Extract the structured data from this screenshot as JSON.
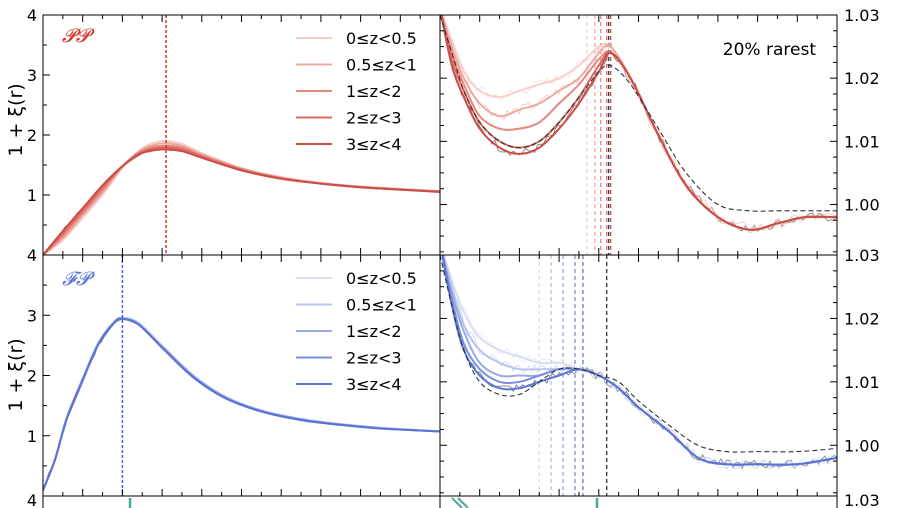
{
  "figure": {
    "ylabel": "1 + ξ(r)",
    "annotation": "20% rarest"
  },
  "colors": {
    "red": [
      "#f5cfca",
      "#eeaaa2",
      "#e5887f",
      "#dd6a61",
      "#cc4d46"
    ],
    "blue": [
      "#d8ddf2",
      "#b9c4ec",
      "#99a9e6",
      "#7a8edf",
      "#5a74d6"
    ],
    "red_vline": "#d8322c",
    "blue_vline": "#3f62d8",
    "noisy": "#6e6e6e",
    "dashed": "#333333",
    "teal": "#46a8a0"
  },
  "chart_data": [
    {
      "type": "line",
      "panel": "top-left",
      "label": "𝓟𝓟",
      "ylim": [
        0.0,
        4.0
      ],
      "yticks": [
        1,
        2,
        3,
        4
      ],
      "yticks_outer": [
        1,
        2,
        3
      ],
      "vline_x": 0.31,
      "legend": [
        "0≤z<0.5",
        "0.5≤z<1",
        "1≤z<2",
        "2≤z<3",
        "3≤z<4"
      ],
      "legend_position": "top-right",
      "x": [
        0.0,
        0.05,
        0.1,
        0.15,
        0.2,
        0.25,
        0.3,
        0.35,
        0.4,
        0.5,
        0.6,
        0.7,
        0.8,
        0.9,
        1.0
      ],
      "series": [
        {
          "values": [
            0.0,
            0.25,
            0.62,
            1.0,
            1.45,
            1.78,
            1.9,
            1.85,
            1.7,
            1.45,
            1.3,
            1.2,
            1.14,
            1.1,
            1.06
          ]
        },
        {
          "values": [
            0.0,
            0.28,
            0.66,
            1.04,
            1.47,
            1.76,
            1.86,
            1.82,
            1.68,
            1.44,
            1.29,
            1.2,
            1.14,
            1.1,
            1.06
          ]
        },
        {
          "values": [
            0.0,
            0.32,
            0.7,
            1.08,
            1.48,
            1.74,
            1.82,
            1.79,
            1.66,
            1.43,
            1.28,
            1.19,
            1.13,
            1.09,
            1.06
          ]
        },
        {
          "values": [
            0.0,
            0.36,
            0.74,
            1.12,
            1.48,
            1.72,
            1.79,
            1.76,
            1.64,
            1.42,
            1.28,
            1.19,
            1.13,
            1.09,
            1.06
          ]
        },
        {
          "values": [
            0.0,
            0.4,
            0.78,
            1.16,
            1.48,
            1.7,
            1.76,
            1.73,
            1.62,
            1.41,
            1.27,
            1.19,
            1.13,
            1.09,
            1.05
          ]
        }
      ]
    },
    {
      "type": "line",
      "panel": "top-right",
      "ylim": [
        0.992,
        1.03
      ],
      "yticks": [
        1.0,
        1.01,
        1.02,
        1.03
      ],
      "vlines": [
        0.37,
        0.39,
        0.405,
        0.42,
        0.43
      ],
      "vline_black": 0.425,
      "x": [
        0.0,
        0.03,
        0.06,
        0.1,
        0.15,
        0.2,
        0.25,
        0.3,
        0.35,
        0.4,
        0.43,
        0.48,
        0.55,
        0.62,
        0.7,
        0.78,
        0.85,
        0.92,
        1.0
      ],
      "series": [
        {
          "values": [
            1.031,
            1.026,
            1.021,
            1.018,
            1.017,
            1.018,
            1.019,
            1.02,
            1.022,
            1.025,
            1.025,
            1.02,
            1.011,
            1.003,
            0.998,
            0.996,
            0.997,
            0.998,
            0.998
          ]
        },
        {
          "values": [
            1.031,
            1.025,
            1.02,
            1.016,
            1.014,
            1.015,
            1.016,
            1.018,
            1.02,
            1.024,
            1.025,
            1.02,
            1.011,
            1.003,
            0.998,
            0.996,
            0.997,
            0.998,
            0.998
          ]
        },
        {
          "values": [
            1.031,
            1.024,
            1.019,
            1.014,
            1.012,
            1.012,
            1.013,
            1.016,
            1.019,
            1.023,
            1.024,
            1.02,
            1.011,
            1.003,
            0.998,
            0.996,
            0.997,
            0.998,
            0.998
          ]
        },
        {
          "values": [
            1.031,
            1.023,
            1.018,
            1.013,
            1.01,
            1.009,
            1.01,
            1.013,
            1.017,
            1.022,
            1.024,
            1.02,
            1.011,
            1.003,
            0.998,
            0.996,
            0.997,
            0.998,
            0.998
          ]
        },
        {
          "values": [
            1.031,
            1.022,
            1.017,
            1.012,
            1.009,
            1.008,
            1.009,
            1.012,
            1.016,
            1.021,
            1.024,
            1.02,
            1.011,
            1.003,
            0.998,
            0.996,
            0.997,
            0.998,
            0.998
          ]
        }
      ],
      "reference": {
        "values": [
          1.03,
          1.024,
          1.018,
          1.013,
          1.01,
          1.009,
          1.01,
          1.013,
          1.017,
          1.021,
          1.022,
          1.019,
          1.012,
          1.005,
          1.0,
          0.999,
          0.999,
          0.999,
          0.999
        ]
      }
    },
    {
      "type": "line",
      "panel": "bottom-left",
      "label": "𝓕𝓟",
      "ylim": [
        0.0,
        4.0
      ],
      "yticks": [
        1,
        2,
        3,
        4
      ],
      "yticks_outer": [
        1,
        2,
        3
      ],
      "vline_x": 0.2,
      "legend": [
        "0≤z<0.5",
        "0.5≤z<1",
        "1≤z<2",
        "2≤z<3",
        "3≤z<4"
      ],
      "legend_position": "top-right",
      "x": [
        0.0,
        0.03,
        0.06,
        0.1,
        0.14,
        0.18,
        0.2,
        0.24,
        0.3,
        0.38,
        0.46,
        0.55,
        0.65,
        0.75,
        0.85,
        1.0
      ],
      "series": [
        {
          "values": [
            0.1,
            0.6,
            1.3,
            1.95,
            2.55,
            2.9,
            2.96,
            2.88,
            2.5,
            2.0,
            1.65,
            1.42,
            1.28,
            1.19,
            1.13,
            1.07
          ]
        },
        {
          "values": [
            0.1,
            0.6,
            1.3,
            1.95,
            2.55,
            2.9,
            2.95,
            2.87,
            2.49,
            1.99,
            1.64,
            1.42,
            1.28,
            1.19,
            1.13,
            1.07
          ]
        },
        {
          "values": [
            0.1,
            0.6,
            1.3,
            1.94,
            2.54,
            2.89,
            2.95,
            2.86,
            2.48,
            1.98,
            1.64,
            1.41,
            1.27,
            1.19,
            1.13,
            1.07
          ]
        },
        {
          "values": [
            0.1,
            0.6,
            1.29,
            1.93,
            2.53,
            2.88,
            2.94,
            2.85,
            2.47,
            1.97,
            1.63,
            1.41,
            1.27,
            1.18,
            1.12,
            1.07
          ]
        },
        {
          "values": [
            0.1,
            0.6,
            1.28,
            1.92,
            2.52,
            2.88,
            2.94,
            2.85,
            2.46,
            1.96,
            1.62,
            1.4,
            1.26,
            1.18,
            1.12,
            1.07
          ]
        }
      ]
    },
    {
      "type": "line",
      "panel": "bottom-right",
      "ylim": [
        0.992,
        1.03
      ],
      "yticks": [
        1.0,
        1.01,
        1.02,
        1.03
      ],
      "vlines": [
        0.25,
        0.28,
        0.31,
        0.34,
        0.36
      ],
      "vline_black": 0.42,
      "x": [
        0.0,
        0.03,
        0.06,
        0.1,
        0.15,
        0.2,
        0.25,
        0.3,
        0.35,
        0.4,
        0.45,
        0.5,
        0.58,
        0.65,
        0.72,
        0.8,
        0.9,
        1.0
      ],
      "series": [
        {
          "values": [
            1.032,
            1.026,
            1.021,
            1.017,
            1.015,
            1.014,
            1.013,
            1.013,
            1.012,
            1.011,
            1.009,
            1.006,
            1.002,
            0.998,
            0.997,
            0.997,
            0.997,
            0.998
          ]
        },
        {
          "values": [
            1.032,
            1.025,
            1.019,
            1.015,
            1.013,
            1.012,
            1.012,
            1.012,
            1.012,
            1.011,
            1.009,
            1.006,
            1.002,
            0.998,
            0.997,
            0.997,
            0.997,
            0.998
          ]
        },
        {
          "values": [
            1.032,
            1.024,
            1.018,
            1.013,
            1.011,
            1.011,
            1.011,
            1.012,
            1.012,
            1.011,
            1.009,
            1.006,
            1.002,
            0.998,
            0.997,
            0.997,
            0.997,
            0.998
          ]
        },
        {
          "values": [
            1.032,
            1.023,
            1.016,
            1.012,
            1.01,
            1.01,
            1.011,
            1.012,
            1.012,
            1.011,
            1.009,
            1.006,
            1.002,
            0.998,
            0.997,
            0.997,
            0.997,
            0.998
          ]
        },
        {
          "values": [
            1.032,
            1.022,
            1.015,
            1.011,
            1.009,
            1.009,
            1.01,
            1.011,
            1.012,
            1.011,
            1.009,
            1.006,
            1.002,
            0.998,
            0.997,
            0.997,
            0.997,
            0.998
          ]
        }
      ],
      "reference": {
        "values": [
          1.03,
          1.022,
          1.015,
          1.01,
          1.008,
          1.008,
          1.01,
          1.012,
          1.012,
          1.011,
          1.01,
          1.007,
          1.003,
          1.0,
          0.999,
          0.999,
          0.999,
          0.9995
        ]
      }
    }
  ]
}
